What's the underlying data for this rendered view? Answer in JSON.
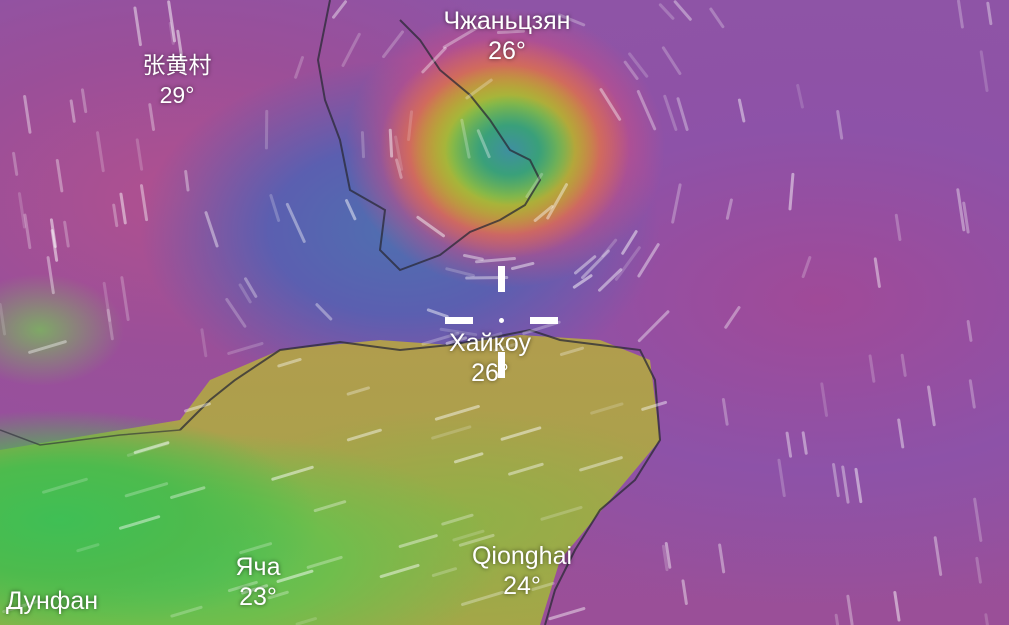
{
  "map": {
    "layer": "wind",
    "colors": {
      "calm": "#3aa07a",
      "moderate": "#d9a73c",
      "strong": "#c64d86",
      "background": "#8d52a8"
    },
    "locations": [
      {
        "name": "Чжаньцзян",
        "temp": "26°"
      },
      {
        "name": "张黄村",
        "temp": "29°"
      },
      {
        "name": "Хайкоу",
        "temp": "26°"
      },
      {
        "name": "Яча",
        "temp": "23°"
      },
      {
        "name": "Дунфан",
        "temp": ""
      },
      {
        "name": "Qionghai",
        "temp": "24°"
      }
    ],
    "crosshair_icon": "crosshair-icon"
  }
}
